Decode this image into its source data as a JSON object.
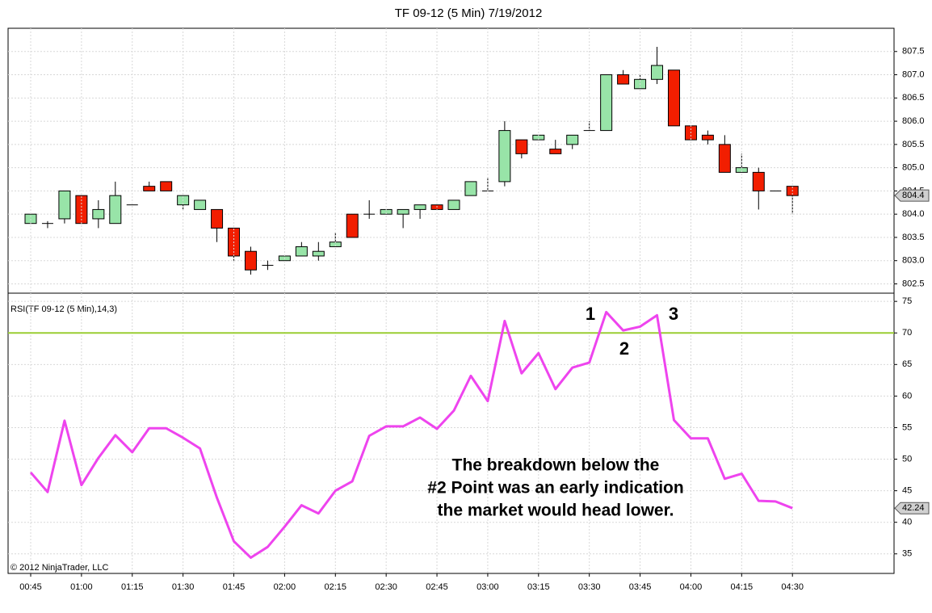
{
  "chart_data": [
    {
      "type": "candlestick",
      "title": "TF 09-12 (5 Min)  7/19/2012",
      "open": [
        803.8,
        803.8,
        803.9,
        804.4,
        803.9,
        803.8,
        804.2,
        804.6,
        804.7,
        804.2,
        804.1,
        804.1,
        803.7,
        803.2,
        802.9,
        803.0,
        803.1,
        803.1,
        803.3,
        804.0,
        804.0,
        804.0,
        804.0,
        804.1,
        804.2,
        804.1,
        804.4,
        804.5,
        804.7,
        805.6,
        805.6,
        805.4,
        805.5,
        805.8,
        805.8,
        807.0,
        806.7,
        806.9,
        807.1,
        805.9,
        805.7,
        805.5,
        804.9,
        804.9,
        804.5,
        804.6
      ],
      "high": [
        804.0,
        803.85,
        804.5,
        804.4,
        804.3,
        804.7,
        804.2,
        804.7,
        804.7,
        804.4,
        804.3,
        804.1,
        803.7,
        803.3,
        803.0,
        803.1,
        803.4,
        803.4,
        803.6,
        804.0,
        804.3,
        804.1,
        804.1,
        804.2,
        804.2,
        804.3,
        804.7,
        804.8,
        806.0,
        805.6,
        805.7,
        805.6,
        805.7,
        806.0,
        807.0,
        807.1,
        807.0,
        807.6,
        807.1,
        805.9,
        805.8,
        805.7,
        805.3,
        805.0,
        804.5,
        804.6
      ],
      "low": [
        803.8,
        803.7,
        803.8,
        803.8,
        803.7,
        803.8,
        804.2,
        804.5,
        804.5,
        804.1,
        804.1,
        803.4,
        803.0,
        802.7,
        802.8,
        803.0,
        803.1,
        803.0,
        803.3,
        803.5,
        803.9,
        804.0,
        803.7,
        803.9,
        804.1,
        804.1,
        804.4,
        804.5,
        804.6,
        805.2,
        805.6,
        805.3,
        805.4,
        805.8,
        805.8,
        806.8,
        806.7,
        806.8,
        805.9,
        805.6,
        805.5,
        804.9,
        804.9,
        804.1,
        804.5,
        804.0
      ],
      "close": [
        804.0,
        803.8,
        804.5,
        803.8,
        804.1,
        804.4,
        804.2,
        804.5,
        804.5,
        804.4,
        804.3,
        803.7,
        803.1,
        802.8,
        802.9,
        803.1,
        803.3,
        803.2,
        803.4,
        803.5,
        804.0,
        804.1,
        804.1,
        804.2,
        804.1,
        804.3,
        804.7,
        804.5,
        805.8,
        805.3,
        805.7,
        805.3,
        805.7,
        805.8,
        807.0,
        806.8,
        806.9,
        807.2,
        805.9,
        805.6,
        805.6,
        804.9,
        805.0,
        804.5,
        804.5,
        804.4
      ],
      "up_color": "#98e4a8",
      "down_color": "#f21e00",
      "last_label": "804.4",
      "ylim": [
        802.3,
        808.0
      ],
      "yticks": [
        802.5,
        {
          "value": 803,
          "label": "803.0"
        },
        803.5,
        {
          "value": 804,
          "label": "804.0"
        },
        804.5,
        {
          "value": 805,
          "label": "805.0"
        },
        805.5,
        {
          "value": 806,
          "label": "806.0"
        },
        806.5,
        {
          "value": 807,
          "label": "807.0"
        },
        807.5
      ],
      "grid": true
    },
    {
      "type": "line",
      "title": "RSI(TF 09-12 (5 Min),14,3)",
      "categories": [
        "00:45",
        null,
        null,
        "01:00",
        null,
        null,
        "01:15",
        null,
        null,
        "01:30",
        null,
        null,
        "01:45",
        null,
        null,
        "02:00",
        null,
        null,
        "02:15",
        null,
        null,
        "02:30",
        null,
        null,
        "02:45",
        null,
        null,
        "03:00",
        null,
        null,
        "03:15",
        null,
        null,
        "03:30",
        null,
        null,
        "03:45",
        null,
        null,
        "04:00",
        null,
        null,
        "04:15",
        null,
        null,
        "04:30"
      ],
      "series": [
        {
          "name": "RSI",
          "color": "#ee44ee",
          "values": [
            47.9,
            44.8,
            56.1,
            45.9,
            50.2,
            53.8,
            51.1,
            54.9,
            54.9,
            53.4,
            51.7,
            43.9,
            37.0,
            34.4,
            36.1,
            39.3,
            42.7,
            41.4,
            45.0,
            46.5,
            53.7,
            55.2,
            55.2,
            56.6,
            54.8,
            57.7,
            63.2,
            59.2,
            71.9,
            63.6,
            66.8,
            61.1,
            64.5,
            65.3,
            73.3,
            70.4,
            71.0,
            72.8,
            56.2,
            53.3,
            53.3,
            46.9,
            47.7,
            43.4,
            43.3,
            42.24
          ]
        }
      ],
      "last_label": "42.24",
      "reference_line": 70,
      "reference_color": "#9acd32",
      "ylim": [
        31.9,
        76.3
      ],
      "yticks": [
        35,
        40,
        45,
        50,
        55,
        60,
        65,
        70,
        75
      ],
      "grid": true,
      "annotations": [
        "1",
        "2",
        "3"
      ],
      "note": [
        "The breakdown below the",
        "#2 Point was an early indication",
        "the market would head lower."
      ],
      "copyright": "© 2012 NinjaTrader, LLC"
    }
  ]
}
